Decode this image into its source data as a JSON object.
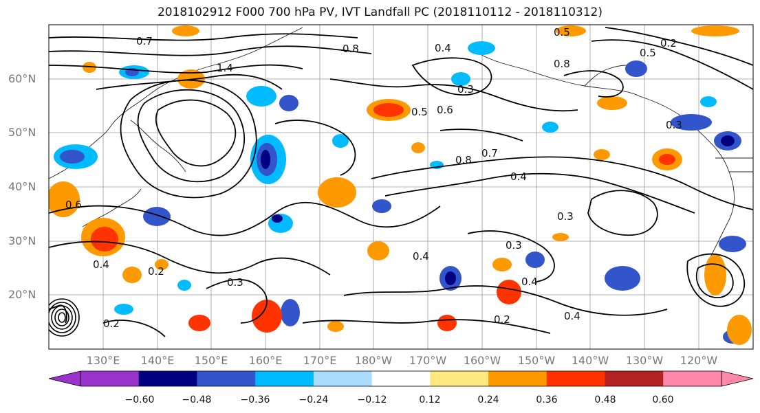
{
  "title": "2018102912 F000 700 hPa PV, IVT Landfall PC (2018110112 - 2018110312)",
  "lat_labels": [
    "60°N",
    "50°N",
    "40°N",
    "30°N",
    "20°N"
  ],
  "lon_labels": [
    "130°E",
    "140°E",
    "150°E",
    "160°E",
    "170°E",
    "180°W",
    "170°W",
    "160°W",
    "150°W",
    "140°W",
    "130°W",
    "120°W"
  ],
  "colorbar": {
    "ticks": [
      "−0.60",
      "−0.48",
      "−0.36",
      "−0.24",
      "−0.12",
      "0.12",
      "0.24",
      "0.36",
      "0.48",
      "0.60"
    ],
    "colors": [
      "#9933cc",
      "#000080",
      "#3355cc",
      "#00bbff",
      "#aaddff",
      "#ffffff",
      "#ffe880",
      "#ff9900",
      "#ff3300",
      "#b22222",
      "#ff88aa"
    ]
  },
  "contour_labels": [
    "0.7",
    "1.4",
    "0.8",
    "0.5",
    "0.6",
    "0.4",
    "0.3",
    "0.2",
    "0.8",
    "0.7",
    "0.4",
    "0.3",
    "0.4",
    "0.2",
    "0.3",
    "0.6",
    "0.4",
    "0.3",
    "0.4",
    "0.2",
    "0.4",
    "0.3",
    "0.5",
    "0.8",
    "0.2",
    "0.5"
  ]
}
